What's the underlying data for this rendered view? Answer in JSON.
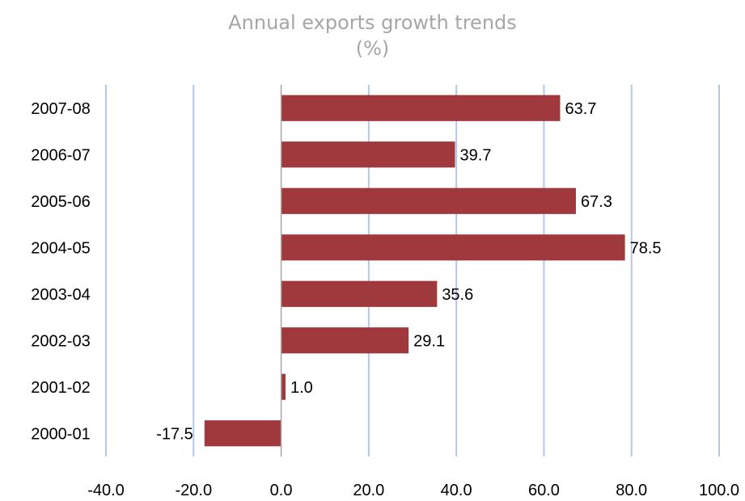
{
  "chart_data": {
    "type": "bar",
    "orientation": "horizontal",
    "title": "Annual exports growth trends",
    "title_unit": "(%)",
    "categories": [
      "2000-01",
      "2001-02",
      "2002-03",
      "2003-04",
      "2004-05",
      "2005-06",
      "2006-07",
      "2007-08"
    ],
    "values": [
      -17.5,
      1.0,
      29.1,
      35.6,
      78.5,
      67.3,
      39.7,
      63.7
    ],
    "data_labels": [
      "-17.5",
      "1.0",
      "29.1",
      "35.6",
      "78.5",
      "67.3",
      "39.7",
      "63.7"
    ],
    "x_ticks": [
      "-40.0",
      "-20.0",
      "0.0",
      "20.0",
      "40.0",
      "60.0",
      "80.0",
      "100.0"
    ],
    "xlim": [
      -40,
      100
    ],
    "xlabel": "",
    "ylabel": "",
    "grid": true,
    "legend": "none",
    "colors": {
      "bar": "#a0393e",
      "grid": "#b4c7e7",
      "zero_axis": "#a6a6a6",
      "title": "#a6a6a6"
    }
  }
}
